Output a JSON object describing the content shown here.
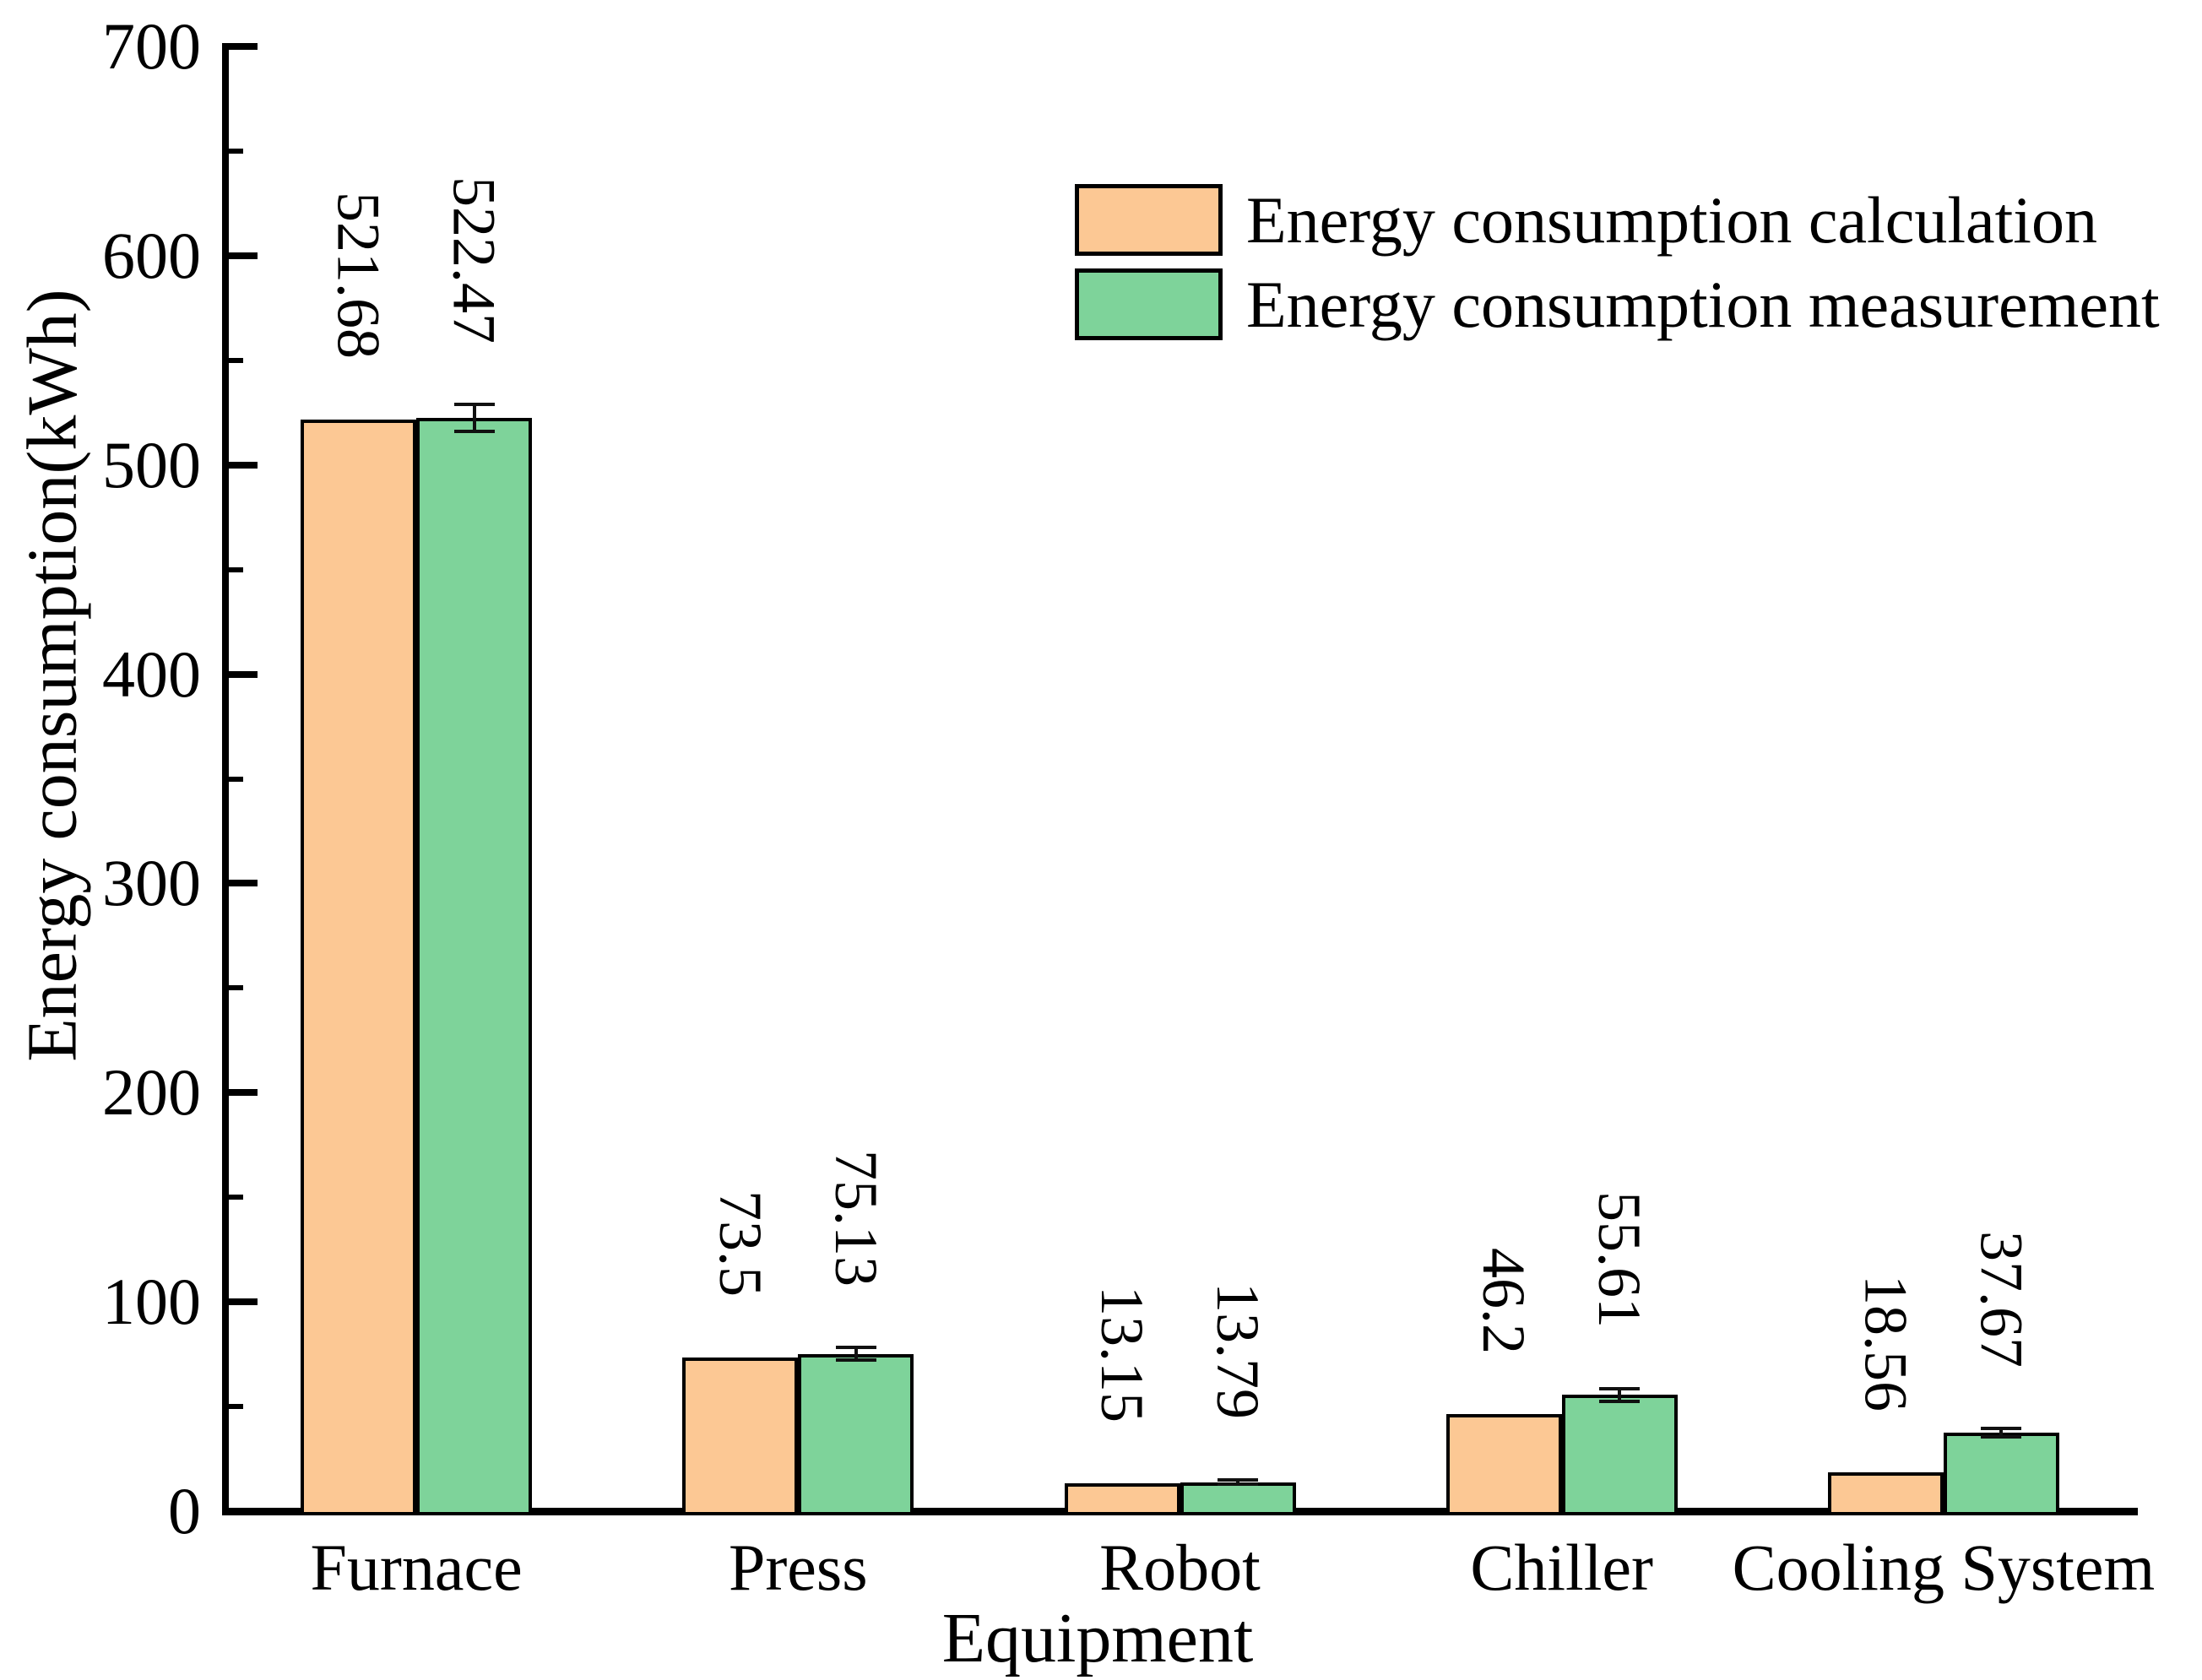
{
  "chart_data": {
    "type": "bar",
    "title": "",
    "categories": [
      "Furnace",
      "Press",
      "Robot",
      "Chiller",
      "Cooling System"
    ],
    "series": [
      {
        "name": "Energy consumption calculation",
        "color": "#FCC894",
        "values": [
          521.68,
          73.5,
          13.15,
          46.2,
          18.56
        ]
      },
      {
        "name": "Energy consumption measurement",
        "color": "#7ED39A",
        "values": [
          522.47,
          75.13,
          13.79,
          55.61,
          37.67
        ],
        "errors": [
          6.5,
          3,
          1,
          3,
          2
        ]
      }
    ],
    "xlabel": "Equipment",
    "ylabel": "Energy consumption(kWh)",
    "ylim": [
      0,
      700
    ],
    "y_major_ticks": [
      0,
      100,
      200,
      300,
      400,
      500,
      600,
      700
    ],
    "y_minor_step": 50,
    "grid": false,
    "legend_position": "top-right",
    "bar_edge_color": "#000000",
    "axis_color": "#000000",
    "value_label_rotation_deg": 90
  }
}
